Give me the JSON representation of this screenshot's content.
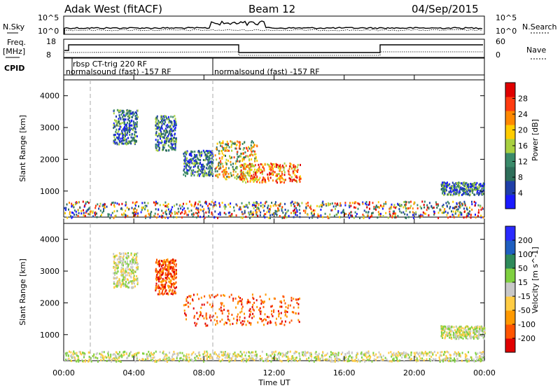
{
  "header": {
    "station": "Adak West (fitACF)",
    "beam": "Beam 12",
    "date": "04/Sep/2015"
  },
  "panels": {
    "nsky": {
      "left_label": "N.Sky",
      "right_label": "N.Search",
      "left_ticks": [
        "10^5",
        "10^0"
      ],
      "right_ticks": [
        "10^5",
        "10^0"
      ]
    },
    "freq": {
      "left_label_1": "Freq.",
      "left_label_2": "[MHz]",
      "left_ticks": [
        "18",
        "8"
      ],
      "right_ticks": [
        "60",
        "0"
      ],
      "right_label": "Nave"
    },
    "cpid": {
      "label": "CPID",
      "segments": [
        {
          "text": "normalsound (fast) -157 RF",
          "start_hour": 0.0
        },
        {
          "text": "rbsp CT-trig 220 RF",
          "start_hour": 1.5
        },
        {
          "text": "normalsound (fast) -157 RF",
          "start_hour": 8.5
        }
      ]
    }
  },
  "chart_data": [
    {
      "type": "heatmap",
      "title": "",
      "xlabel": "",
      "ylabel": "Slant Range [km]",
      "x_unit": "hours UT",
      "xlim": [
        0,
        24
      ],
      "ylim": [
        180,
        4500
      ],
      "yticks": [
        1000,
        2000,
        3000,
        4000
      ],
      "colorbar": {
        "label": "Power [dB]",
        "ticks": [
          "4",
          "8",
          "12",
          "16",
          "20",
          "24",
          "28"
        ],
        "colors": [
          "#1a1aff",
          "#1f3fa8",
          "#2e6e5a",
          "#3a8a6a",
          "#a8d040",
          "#ffcc00",
          "#ff8800",
          "#ff3b10",
          "#e00000"
        ]
      },
      "regions": [
        {
          "t_start": 2.8,
          "t_end": 4.2,
          "r_start": 2500,
          "r_end": 3600,
          "level": "medium"
        },
        {
          "t_start": 5.2,
          "t_end": 6.4,
          "r_start": 2300,
          "r_end": 3400,
          "level": "medium"
        },
        {
          "t_start": 6.8,
          "t_end": 8.5,
          "r_start": 1500,
          "r_end": 2300,
          "level": "medium"
        },
        {
          "t_start": 8.6,
          "t_end": 11.0,
          "r_start": 1400,
          "r_end": 2600,
          "level": "medium-high"
        },
        {
          "t_start": 10.0,
          "t_end": 13.5,
          "r_start": 1300,
          "r_end": 1900,
          "level": "high"
        },
        {
          "t_start": 21.5,
          "t_end": 24.0,
          "r_start": 900,
          "r_end": 1300,
          "level": "medium"
        },
        {
          "t_start": 0.0,
          "t_end": 24.0,
          "r_start": 180,
          "r_end": 700,
          "level": "mixed"
        }
      ]
    },
    {
      "type": "heatmap",
      "title": "",
      "xlabel": "Time UT",
      "ylabel": "Slant Range [km]",
      "x_unit": "hours UT",
      "xlim": [
        0,
        24
      ],
      "ylim": [
        180,
        4500
      ],
      "yticks": [
        1000,
        2000,
        3000,
        4000
      ],
      "xtick_labels": [
        "00:00",
        "04:00",
        "08:00",
        "12:00",
        "16:00",
        "20:00",
        "00:00"
      ],
      "colorbar": {
        "label": "Velocity [m s^-1]",
        "ticks": [
          "200",
          "100",
          "50",
          "15",
          "-15",
          "-50",
          "-100",
          "-200"
        ],
        "colors": [
          "#2a2aff",
          "#1f5fc0",
          "#2e8a5a",
          "#7fd040",
          "#c8c8c8",
          "#ffcc44",
          "#ff9900",
          "#ff5500",
          "#e00000"
        ]
      },
      "regions": [
        {
          "t_start": 2.8,
          "t_end": 4.2,
          "r_start": 2500,
          "r_end": 3600,
          "sign": "near-zero"
        },
        {
          "t_start": 5.2,
          "t_end": 6.4,
          "r_start": 2300,
          "r_end": 3400,
          "sign": "negative"
        },
        {
          "t_start": 6.8,
          "t_end": 13.5,
          "r_start": 1300,
          "r_end": 2300,
          "sign": "negative"
        },
        {
          "t_start": 21.5,
          "t_end": 24.0,
          "r_start": 900,
          "r_end": 1300,
          "sign": "near-zero"
        },
        {
          "t_start": 0.0,
          "t_end": 24.0,
          "r_start": 180,
          "r_end": 500,
          "sign": "slightly-negative"
        }
      ]
    }
  ]
}
